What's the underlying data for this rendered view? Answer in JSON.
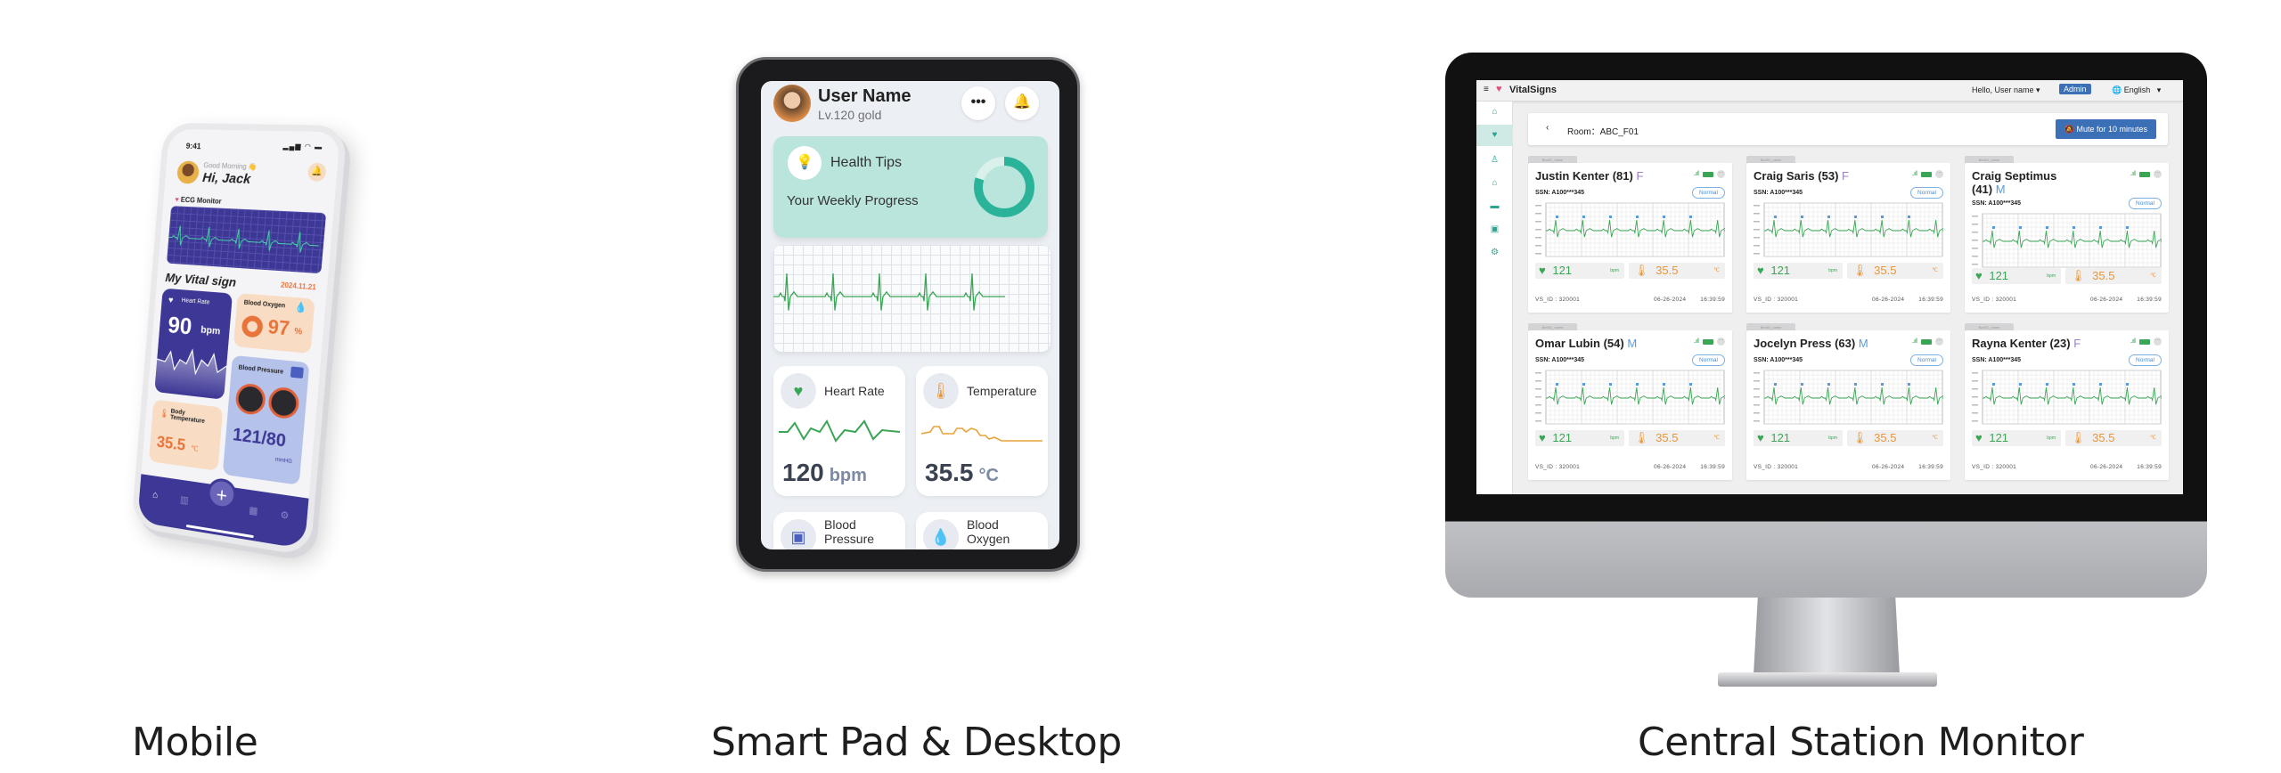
{
  "captions": {
    "mobile": "Mobile",
    "pad": "Smart Pad & Desktop",
    "monitor": "Central Station Monitor"
  },
  "mobile": {
    "status_time": "9:41",
    "greeting": "Good Morning 👋",
    "name": "Hi, Jack",
    "ecg_title": "ECG Monitor",
    "section_title": "My Vital sign",
    "date": "2024.11.21",
    "heart_rate": {
      "label": "Heart Rate",
      "value": "90",
      "unit": "bpm"
    },
    "blood_oxygen": {
      "label": "Blood Oxygen",
      "value": "97",
      "unit": "%"
    },
    "blood_pressure": {
      "label": "Blood Pressure",
      "value": "121/80",
      "unit": "mmHG"
    },
    "body_temperature": {
      "label": "Body Temperature",
      "value": "35.5",
      "unit": "℃"
    },
    "accent": "#3d3795",
    "nav_icons": [
      "home-icon",
      "chart-icon",
      "plus-icon",
      "calendar-icon",
      "gear-icon"
    ]
  },
  "pad": {
    "user_name": "User Name",
    "level": "Lv.120 gold",
    "health_tips": "Health Tips",
    "weekly_progress": "Your Weekly Progress",
    "progress_fraction": 0.8,
    "heart_rate": {
      "label": "Heart Rate",
      "value": "120",
      "unit": "bpm"
    },
    "temperature": {
      "label": "Temperature",
      "value": "35.5",
      "unit": "°C"
    },
    "blood_pressure": {
      "label": "Blood Pressure"
    },
    "blood_oxygen": {
      "label": "Blood Oxygen"
    },
    "accent": "#2bb39a"
  },
  "monitor": {
    "app_name": "VitalSigns",
    "greeting": "Hello, User name",
    "role": "Admin",
    "language": "English",
    "room": "Room：ABC_F01",
    "mute_label": "Mute for 10 minutes",
    "sidebar_icons": [
      "home-icon",
      "heart-monitor-icon",
      "patients-icon",
      "house-icon",
      "bed-icon",
      "contact-card-icon",
      "gear-icon"
    ],
    "patients": [
      {
        "bed": "Bed01_name",
        "name": "Justin Kenter",
        "age": "(81)",
        "gender": "F",
        "ssn": "SSN: A100***345",
        "status": "Normal",
        "hr": "121",
        "hr_unit": "bpm",
        "temp": "35.5",
        "temp_unit": "℃",
        "vs_id": "VS_ID : 320001",
        "date": "06-26-2024",
        "time": "16:39:59"
      },
      {
        "bed": "Bed01_name",
        "name": "Craig Saris",
        "age": "(53)",
        "gender": "F",
        "ssn": "SSN: A100***345",
        "status": "Normal",
        "hr": "121",
        "hr_unit": "bpm",
        "temp": "35.5",
        "temp_unit": "℃",
        "vs_id": "VS_ID : 320001",
        "date": "06-26-2024",
        "time": "16:39:59"
      },
      {
        "bed": "Bed01_name",
        "name": "Craig Septimus",
        "age": "(41)",
        "gender": "M",
        "ssn": "SSN: A100***345",
        "status": "Normal",
        "hr": "121",
        "hr_unit": "bpm",
        "temp": "35.5",
        "temp_unit": "℃",
        "vs_id": "VS_ID : 320001",
        "date": "06-26-2024",
        "time": "16:39:59"
      },
      {
        "bed": "Bed01_name",
        "name": "Omar Lubin",
        "age": "(54)",
        "gender": "M",
        "ssn": "SSN: A100***345",
        "status": "Normal",
        "hr": "121",
        "hr_unit": "bpm",
        "temp": "35.5",
        "temp_unit": "℃",
        "vs_id": "VS_ID : 320001",
        "date": "06-26-2024",
        "time": "16:39:59"
      },
      {
        "bed": "Bed01_name",
        "name": "Jocelyn Press",
        "age": "(63)",
        "gender": "M",
        "ssn": "SSN: A100***345",
        "status": "Normal",
        "hr": "121",
        "hr_unit": "bpm",
        "temp": "35.5",
        "temp_unit": "℃",
        "vs_id": "VS_ID : 320001",
        "date": "06-26-2024",
        "time": "16:39:59"
      },
      {
        "bed": "Bed01_name",
        "name": "Rayna Kenter",
        "age": "(23)",
        "gender": "F",
        "ssn": "SSN: A100***345",
        "status": "Normal",
        "hr": "121",
        "hr_unit": "bpm",
        "temp": "35.5",
        "temp_unit": "℃",
        "vs_id": "VS_ID : 320001",
        "date": "06-26-2024",
        "time": "16:39:59"
      }
    ],
    "colors": {
      "female": "#9b7fc9",
      "male": "#5b9bd5",
      "heart": "#3aa655",
      "temp": "#e8963a",
      "primary": "#3b6fb6",
      "teal": "#2aa58f"
    }
  }
}
